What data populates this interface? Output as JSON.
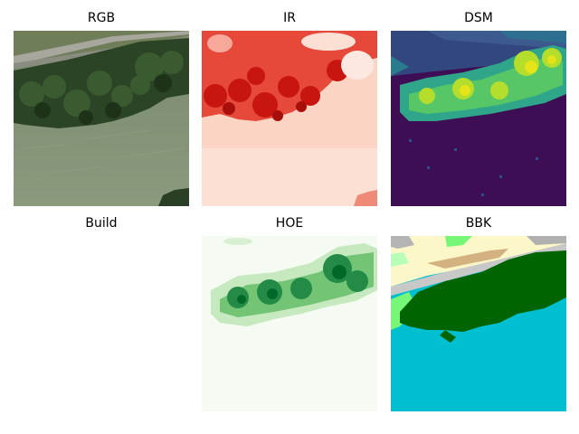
{
  "figure": {
    "panels": [
      {
        "id": "rgb",
        "title": "RGB"
      },
      {
        "id": "ir",
        "title": "IR"
      },
      {
        "id": "dsm",
        "title": "DSM"
      },
      {
        "id": "build",
        "title": "Build"
      },
      {
        "id": "hoe",
        "title": "HOE"
      },
      {
        "id": "bbk",
        "title": "BBK"
      }
    ]
  },
  "colors": {
    "rgb_river": "#849376",
    "rgb_forest": "#2c4426",
    "ir_dense": "#c8150f",
    "ir_low": "#fbd6c8",
    "dsm_low": "#3e0e54",
    "dsm_high": "#e0e030",
    "hoe_dark": "#1e7a3c",
    "hoe_low": "#f5fbf3",
    "bbk_water": "#00bfd0",
    "bbk_forest": "#006400",
    "bbk_meadow": "#77f777",
    "bbk_road": "#c8c8c8",
    "bbk_field": "#fbf7c8",
    "bbk_soil": "#d4b180"
  }
}
